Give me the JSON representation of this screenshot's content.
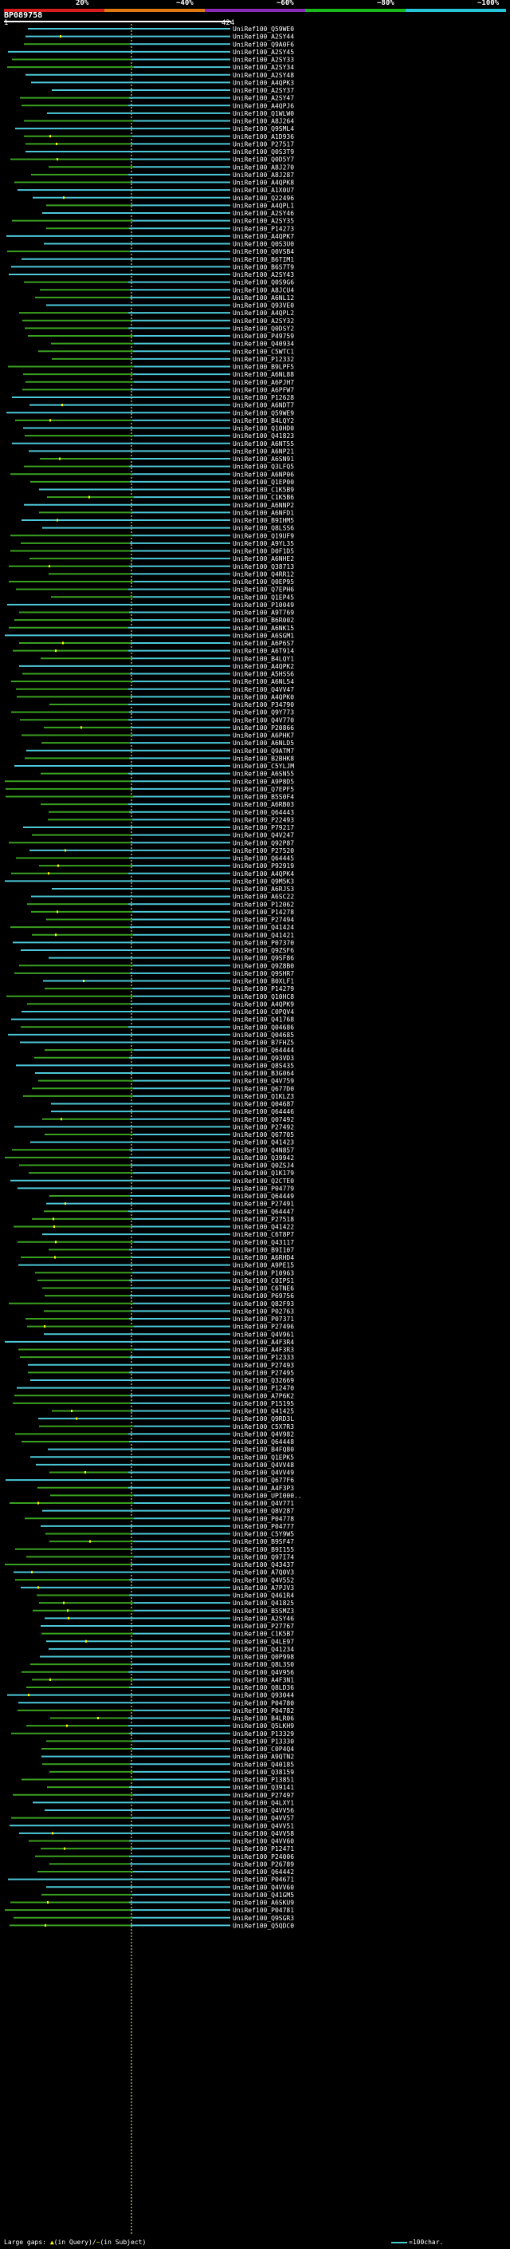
{
  "header": {
    "scale_labels": [
      "20%",
      "~40%",
      "~60%",
      "~80%",
      "~100%"
    ],
    "scale_colors": [
      "#d81b1b",
      "#e07a10",
      "#8a2bb8",
      "#1bb81b",
      "#26c6da"
    ],
    "title": "BP089758",
    "query_start": "1",
    "query_end": "424"
  },
  "colors": {
    "high_identity": "#4cc8d8",
    "mid_identity": "#3aa020",
    "gap_marker": "#ffff00",
    "center_marker": "#ffff88"
  },
  "hits": [
    "UniRef100_Q59WE0",
    "UniRef100_A2SY44",
    "UniRef100_Q9A0F6",
    "UniRef100_A2SY45",
    "UniRef100_A2SY33",
    "UniRef100_A2SY34",
    "UniRef100_A2SY48",
    "UniRef100_A4QPK3",
    "UniRef100_A2SY37",
    "UniRef100_A2SY47",
    "UniRef100_A4QPJ6",
    "UniRef100_Q1WLW0",
    "UniRef100_A8J264",
    "UniRef100_Q9SML4",
    "UniRef100_A1D936",
    "UniRef100_P27517",
    "UniRef100_Q0S3T9",
    "UniRef100_Q0D5Y7",
    "UniRef100_A8J270",
    "UniRef100_A8J287",
    "UniRef100_A4QPK8",
    "UniRef100_A1X0U7",
    "UniRef100_Q22496",
    "UniRef100_A4QPL1",
    "UniRef100_A2SY46",
    "UniRef100_A2SY35",
    "UniRef100_P14273",
    "UniRef100_A4QPK7",
    "UniRef100_Q0S3U0",
    "UniRef100_Q0VSB4",
    "UniRef100_B6TIM1",
    "UniRef100_B6S7T9",
    "UniRef100_A2SY43",
    "UniRef100_Q0S9G6",
    "UniRef100_A8JCU4",
    "UniRef100_A6NL12",
    "UniRef100_Q93VE0",
    "UniRef100_A4QPL2",
    "UniRef100_A2SY32",
    "UniRef100_Q0DSY2",
    "UniRef100_P49759",
    "UniRef100_Q40934",
    "UniRef100_C5WTC1",
    "UniRef100_P12332",
    "UniRef100_B9LPF5",
    "UniRef100_A6NL88",
    "UniRef100_A6PJH7",
    "UniRef100_A6PFW7",
    "UniRef100_P12628",
    "UniRef100_A6NDT7",
    "UniRef100_Q59WE9",
    "UniRef100_B4LQY2",
    "UniRef100_Q10HD0",
    "UniRef100_Q41823",
    "UniRef100_A6NT55",
    "UniRef100_A6NP21",
    "UniRef100_A6SN91",
    "UniRef100_Q3LFQ5",
    "UniRef100_A6NP06",
    "UniRef100_Q1EP00",
    "UniRef100_C1K5B9",
    "UniRef100_C1K5B6",
    "UniRef100_A6NNP2",
    "UniRef100_A6NFD1",
    "UniRef100_B9IHM5",
    "UniRef100_Q8LSS6",
    "UniRef100_Q19UF9",
    "UniRef100_A9YL35",
    "UniRef100_D0F1D5",
    "UniRef100_A6NHE2",
    "UniRef100_Q38713",
    "UniRef100_Q4RR12",
    "UniRef100_Q0EP95",
    "UniRef100_Q7EPH6",
    "UniRef100_Q1EP45",
    "UniRef100_P10049",
    "UniRef100_A9T769",
    "UniRef100_B6R002",
    "UniRef100_A6NK15",
    "UniRef100_A6SGM1",
    "UniRef100_A6P6S7",
    "UniRef100_A6T914",
    "UniRef100_B4LQY1",
    "UniRef100_A4QPK2",
    "UniRef100_A5HSS6",
    "UniRef100_A6NL54",
    "UniRef100_Q4VV47",
    "UniRef100_A4QPK0",
    "UniRef100_P34790",
    "UniRef100_Q9Y773",
    "UniRef100_Q4V770",
    "UniRef100_P20866",
    "UniRef100_A6PHK7",
    "UniRef100_A6NLD5",
    "UniRef100_Q9ATM7",
    "UniRef100_B2BHK8",
    "UniRef100_C5YLJM",
    "UniRef100_A6SN55",
    "UniRef100_A9P8D5",
    "UniRef100_Q7EPF5",
    "UniRef100_B5S0F4",
    "UniRef100_A6RB03",
    "UniRef100_Q64443",
    "UniRef100_P22493",
    "UniRef100_P79217",
    "UniRef100_Q4V247",
    "UniRef100_Q92P87",
    "UniRef100_P27520",
    "UniRef100_Q64445",
    "UniRef100_P92919",
    "UniRef100_A4QPK4",
    "UniRef100_Q9M5K3",
    "UniRef100_A6RJS3",
    "UniRef100_A6SC22",
    "UniRef100_P12062",
    "UniRef100_P14278",
    "UniRef100_P27494",
    "UniRef100_Q41424",
    "UniRef100_Q41421",
    "UniRef100_P07370",
    "UniRef100_Q9ZSF6",
    "UniRef100_Q9SF86",
    "UniRef100_Q9Z8B0",
    "UniRef100_Q9SHR7",
    "UniRef100_B0XLF1",
    "UniRef100_P14279",
    "UniRef100_Q10HC8",
    "UniRef100_A4QPK9",
    "UniRef100_C0PQV4",
    "UniRef100_Q41768",
    "UniRef100_Q04686",
    "UniRef100_Q04685",
    "UniRef100_B7FHZ5",
    "UniRef100_Q64444",
    "UniRef100_Q93VD3",
    "UniRef100_Q8S435",
    "UniRef100_B3G064",
    "UniRef100_Q4V759",
    "UniRef100_Q677D0",
    "UniRef100_Q1KLZ3",
    "UniRef100_Q04687",
    "UniRef100_Q64446",
    "UniRef100_Q07492",
    "UniRef100_P27492",
    "UniRef100_Q67705",
    "UniRef100_Q41423",
    "UniRef100_Q4N857",
    "UniRef100_Q39942",
    "UniRef100_Q0ZSJ4",
    "UniRef100_Q1K179",
    "UniRef100_Q2CTE0",
    "UniRef100_P04779",
    "UniRef100_Q64449",
    "UniRef100_P27491",
    "UniRef100_Q64447",
    "UniRef100_P27518",
    "UniRef100_Q41422",
    "UniRef100_C6T8P7",
    "UniRef100_Q43117",
    "UniRef100_B9I107",
    "UniRef100_A6RHD4",
    "UniRef100_A9PE15",
    "UniRef100_P10963",
    "UniRef100_C0IPS1",
    "UniRef100_C6TNE6",
    "UniRef100_P69756",
    "UniRef100_Q82F93",
    "UniRef100_P02763",
    "UniRef100_P07371",
    "UniRef100_P27496",
    "UniRef100_Q4V961",
    "UniRef100_A4F3R4",
    "UniRef100_A4F3R3",
    "UniRef100_P12333",
    "UniRef100_P27493",
    "UniRef100_P27495",
    "UniRef100_Q32669",
    "UniRef100_P12470",
    "UniRef100_A7P6K2",
    "UniRef100_P15195",
    "UniRef100_Q41425",
    "UniRef100_Q9RD3L",
    "UniRef100_C5X7R3",
    "UniRef100_Q4V982",
    "UniRef100_Q64448",
    "UniRef100_B4FQ80",
    "UniRef100_Q1EPK5",
    "UniRef100_Q4VV48",
    "UniRef100_Q4VV49",
    "UniRef100_Q677F6",
    "UniRef100_A4F3P3",
    "UniRef100_UPI000..",
    "UniRef100_Q4V771",
    "UniRef100_Q8V287",
    "UniRef100_P04778",
    "UniRef100_P04777",
    "UniRef100_C5Y9W5",
    "UniRef100_B9SF47",
    "UniRef100_B9I155",
    "UniRef100_Q97I74",
    "UniRef100_Q43437",
    "UniRef100_A7Q0V3",
    "UniRef100_Q4V552",
    "UniRef100_A7PJV3",
    "UniRef100_Q461R4",
    "UniRef100_Q41825",
    "UniRef100_B5SMZ3",
    "UniRef100_A2SY46",
    "UniRef100_P27767",
    "UniRef100_C1K5B7",
    "UniRef100_Q4LE97",
    "UniRef100_Q41234",
    "UniRef100_Q0P998",
    "UniRef100_Q8L3S0",
    "UniRef100_Q4V956",
    "UniRef100_A4F3N1",
    "UniRef100_Q8LD36",
    "UniRef100_Q93044",
    "UniRef100_P04780",
    "UniRef100_P04782",
    "UniRef100_B4LR06",
    "UniRef100_Q5LKH9",
    "UniRef100_P13329",
    "UniRef100_P13330",
    "UniRef100_C0P4Q4",
    "UniRef100_A9QTN2",
    "UniRef100_Q40185",
    "UniRef100_Q38159",
    "UniRef100_P13851",
    "UniRef100_Q39141",
    "UniRef100_P27497",
    "UniRef100_Q4LXY1",
    "UniRef100_Q4VV56",
    "UniRef100_Q4VV57",
    "UniRef100_Q4VV51",
    "UniRef100_Q4VV58",
    "UniRef100_Q4VV60",
    "UniRef100_P12471",
    "UniRef100_P24006",
    "UniRef100_P26789",
    "UniRef100_Q64442",
    "UniRef100_P04671",
    "UniRef100_Q4VV60",
    "UniRef100_Q41GM5",
    "UniRef100_A6SKU9",
    "UniRef100_P04781",
    "UniRef100_Q9SGR3",
    "UniRef100_Q5QDC0"
  ],
  "footer": {
    "label": "Large gaps:",
    "in_query": "(in Query)",
    "in_subject": "(in Subject)",
    "separator": "/",
    "scale_label": "=100char."
  }
}
